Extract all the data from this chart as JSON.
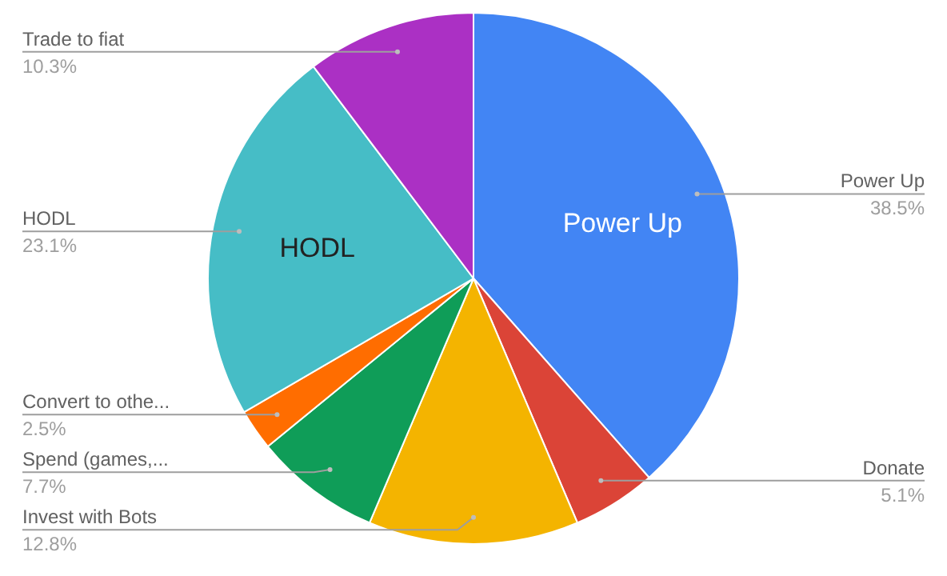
{
  "chart_data": {
    "type": "pie",
    "categories": [
      "Power Up",
      "Donate",
      "Invest with Bots",
      "Spend (games,...",
      "Convert to othe...",
      "HODL",
      "Trade to fiat"
    ],
    "values": [
      38.5,
      5.1,
      12.8,
      7.7,
      2.5,
      23.1,
      10.3
    ],
    "value_labels": [
      "38.5%",
      "5.1%",
      "12.8%",
      "7.7%",
      "2.5%",
      "23.1%",
      "10.3%"
    ],
    "colors": [
      "#4285f4",
      "#db4437",
      "#f4b400",
      "#0f9d58",
      "#ff6d00",
      "#46bdc6",
      "#ab30c4"
    ]
  }
}
